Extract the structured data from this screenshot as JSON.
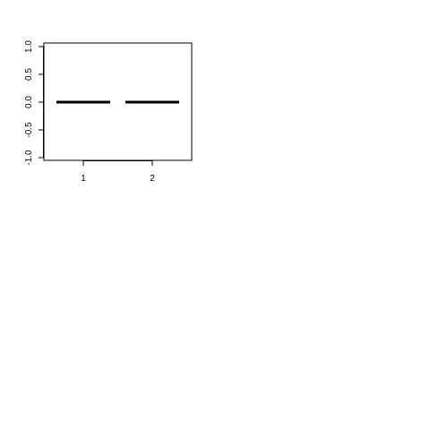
{
  "chart_data": {
    "type": "bar",
    "categories": [
      "1",
      "2"
    ],
    "values": [
      0.0,
      0.0
    ],
    "ylim": [
      -1.0,
      1.0
    ],
    "yticks": [
      -1.0,
      -0.5,
      0.0,
      0.5,
      1.0
    ],
    "ytick_labels": [
      "-1.0",
      "-0.5",
      "0.0",
      "0.5",
      "1.0"
    ],
    "title": "",
    "xlabel": "",
    "ylabel": "",
    "grid": false,
    "bar_color": "#000000"
  }
}
